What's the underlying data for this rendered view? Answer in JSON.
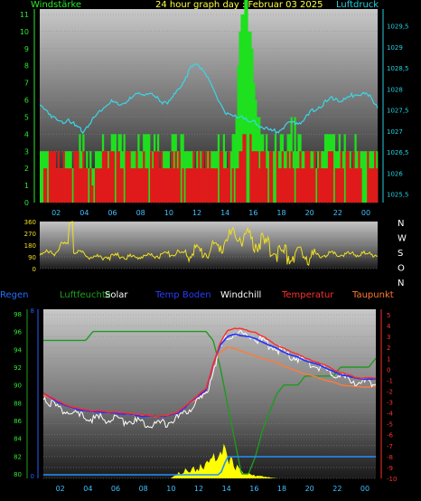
{
  "header": {
    "left_label": "Windstärke",
    "center_title": "24 hour graph day : Februar 03 2025",
    "right_label": "Luftdruck"
  },
  "colors": {
    "wind_axis": "#2ee82e",
    "pressure_axis": "#23d0e0",
    "wind_bar": "#1ee01e",
    "gust_bar": "#e01a1a",
    "pressure_line": "#39d7e6",
    "direction_line": "#f0e020",
    "humidity_line": "#1f9a1f",
    "temperature_line": "#ff2a2a",
    "dewpoint_line": "#ff7a3a",
    "soil_line": "#2030ff",
    "windchill_line": "#ffffff",
    "rain_line": "#2090ff",
    "solar_fill": "#ffff00"
  },
  "legend": [
    {
      "label": "Regen",
      "color": "#2070ff"
    },
    {
      "label": "Luftfeuchte",
      "color": "#1fa01f"
    },
    {
      "label": "Solar",
      "color": "#ffffff"
    },
    {
      "label": "Temp Boden",
      "color": "#2a3cff"
    },
    {
      "label": "Windchill",
      "color": "#ffffff"
    },
    {
      "label": "Temperatur",
      "color": "#ff3030"
    },
    {
      "label": "Taupunkt",
      "color": "#ff7a30"
    }
  ],
  "direction_labels": [
    "N",
    "W",
    "S",
    "O",
    "N"
  ],
  "chart_data": [
    {
      "type": "bar",
      "name": "wind-pressure",
      "x_ticks": [
        "02",
        "04",
        "06",
        "08",
        "10",
        "12",
        "14",
        "16",
        "18",
        "20",
        "22",
        "00"
      ],
      "y_left_ticks": [
        "0",
        "1",
        "2",
        "3",
        "4",
        "5",
        "6",
        "7",
        "8",
        "9",
        "10",
        "11"
      ],
      "y_left_range": [
        0,
        11
      ],
      "y_right_ticks": [
        "1025,5",
        "1026",
        "1026,5",
        "1027",
        "1027,5",
        "1028",
        "1028,5",
        "1029",
        "1029,5"
      ],
      "y_right_range": [
        1025.3,
        1029.9
      ],
      "wind_hourly": [
        3,
        3,
        2,
        2,
        3,
        3,
        3,
        2,
        3,
        3,
        4,
        4,
        3,
        3,
        3,
        4,
        3,
        3,
        3,
        4,
        3,
        3,
        3,
        3,
        3,
        4,
        3,
        3,
        11,
        11,
        6,
        4,
        3,
        3,
        3,
        4,
        4,
        3,
        3,
        3,
        4,
        4,
        3,
        3,
        3,
        3,
        3,
        3
      ],
      "gust_hourly": [
        3,
        3,
        3,
        3,
        3,
        3,
        3,
        2,
        3,
        3,
        3,
        3,
        3,
        3,
        3,
        3,
        3,
        3,
        3,
        3,
        3,
        3,
        3,
        3,
        3,
        3,
        3,
        3,
        3,
        6,
        3,
        3,
        3,
        3,
        3,
        3,
        3,
        3,
        3,
        3,
        3,
        3,
        3,
        3,
        3,
        3,
        3,
        3
      ],
      "pressure_hourly": [
        1027.6,
        1027.5,
        1027.3,
        1027.2,
        1027.3,
        1027.1,
        1027.0,
        1027.2,
        1027.4,
        1027.6,
        1027.7,
        1027.6,
        1027.7,
        1027.8,
        1027.9,
        1027.9,
        1027.8,
        1027.7,
        1027.7,
        1027.9,
        1028.2,
        1028.5,
        1028.6,
        1028.4,
        1028.0,
        1027.7,
        1027.4,
        1027.3,
        1027.4,
        1027.2,
        1027.2,
        1027.1,
        1027.0,
        1027.0,
        1027.1,
        1027.2,
        1027.2,
        1027.3,
        1027.5,
        1027.6,
        1027.7,
        1027.8,
        1027.7,
        1027.8,
        1027.9,
        1027.9,
        1027.8,
        1027.6
      ]
    },
    {
      "type": "line",
      "name": "wind-direction",
      "y_ticks": [
        "360",
        "270",
        "180",
        "90",
        "0"
      ],
      "y_range": [
        0,
        360
      ],
      "direction_hourly": [
        120,
        120,
        120,
        180,
        180,
        120,
        120,
        90,
        90,
        90,
        90,
        100,
        90,
        90,
        90,
        100,
        100,
        100,
        110,
        120,
        120,
        120,
        130,
        130,
        150,
        170,
        230,
        240,
        240,
        230,
        200,
        190,
        160,
        130,
        110,
        100,
        100,
        100,
        100,
        100,
        110,
        110,
        110,
        110,
        110,
        110,
        110,
        110
      ]
    },
    {
      "type": "line",
      "name": "temperature-humidity",
      "x_ticks": [
        "02",
        "04",
        "06",
        "08",
        "10",
        "12",
        "14",
        "16",
        "18",
        "20",
        "22",
        "00"
      ],
      "y_humidity_ticks": [
        "80",
        "82",
        "84",
        "86",
        "88",
        "90",
        "92",
        "94",
        "96",
        "98"
      ],
      "y_humidity_range": [
        79.5,
        98.5
      ],
      "y_temp_ticks": [
        "5",
        "4",
        "3",
        "2",
        "1",
        "0",
        "-1",
        "-2",
        "-3",
        "-4",
        "-5",
        "-6",
        "-7",
        "-8",
        "-9",
        "-10"
      ],
      "y_temp_range": [
        -10,
        5.5
      ],
      "temperature_hourly": [
        -2.2,
        -2.5,
        -2.9,
        -3.2,
        -3.4,
        -3.6,
        -3.7,
        -3.8,
        -3.8,
        -3.9,
        -3.9,
        -4.0,
        -4.0,
        -4.1,
        -4.2,
        -4.2,
        -4.3,
        -4.3,
        -4.1,
        -3.9,
        -3.4,
        -2.8,
        -2.3,
        -1.8,
        0.5,
        2.4,
        3.5,
        3.8,
        3.7,
        3.5,
        3.4,
        3.0,
        2.6,
        2.2,
        1.9,
        1.6,
        1.4,
        1.0,
        0.8,
        0.6,
        0.3,
        0.0,
        -0.3,
        -0.5,
        -0.7,
        -0.8,
        -0.8,
        -0.8
      ],
      "soil_hourly": [
        -2.2,
        -2.6,
        -3.0,
        -3.3,
        -3.5,
        -3.7,
        -3.8,
        -3.9,
        -3.9,
        -4.0,
        -4.0,
        -4.1,
        -4.1,
        -4.2,
        -4.3,
        -4.3,
        -4.3,
        -4.3,
        -4.2,
        -4.0,
        -3.5,
        -2.9,
        -2.4,
        -1.9,
        0.4,
        2.2,
        3.0,
        3.2,
        3.1,
        3.0,
        2.8,
        2.5,
        2.2,
        1.9,
        1.6,
        1.3,
        1.1,
        0.8,
        0.6,
        0.4,
        0.1,
        -0.2,
        -0.5,
        -0.6,
        -0.8,
        -0.9,
        -0.9,
        -0.9
      ],
      "dewpoint_hourly": [
        -2.4,
        -2.7,
        -3.0,
        -3.3,
        -3.5,
        -3.7,
        -3.8,
        -3.9,
        -3.9,
        -4.0,
        -4.0,
        -4.1,
        -4.1,
        -4.2,
        -4.2,
        -4.3,
        -4.3,
        -4.3,
        -4.2,
        -4.0,
        -3.5,
        -3.0,
        -2.6,
        -2.0,
        0.3,
        1.6,
        2.0,
        1.9,
        1.7,
        1.4,
        1.2,
        1.0,
        0.8,
        0.6,
        0.3,
        0.0,
        -0.2,
        -0.4,
        -0.6,
        -0.8,
        -1.0,
        -1.2,
        -1.4,
        -1.5,
        -1.6,
        -1.6,
        -1.6,
        -1.6
      ],
      "windchill_hourly": [
        -2.5,
        -3.0,
        -3.5,
        -3.8,
        -4.1,
        -4.3,
        -4.4,
        -4.5,
        -4.5,
        -4.6,
        -4.6,
        -4.7,
        -4.7,
        -4.8,
        -4.9,
        -4.9,
        -5.0,
        -5.0,
        -4.8,
        -4.5,
        -4.0,
        -3.4,
        -2.9,
        -2.4,
        0.0,
        1.9,
        3.0,
        3.3,
        3.2,
        3.1,
        2.9,
        2.6,
        2.2,
        1.8,
        1.5,
        1.2,
        1.0,
        0.6,
        0.4,
        0.2,
        -0.1,
        -0.4,
        -0.7,
        -0.9,
        -1.1,
        -1.2,
        -1.2,
        -1.2
      ],
      "humidity_hourly": [
        95,
        95,
        95,
        95,
        95,
        95,
        95,
        96,
        96,
        96,
        96,
        96,
        96,
        96,
        96,
        96,
        96,
        96,
        96,
        96,
        96,
        96,
        96,
        96,
        95,
        92,
        88,
        84,
        80,
        80,
        82,
        85,
        87,
        89,
        90,
        90,
        90,
        91,
        91,
        91,
        91,
        91,
        92,
        92,
        92,
        92,
        92,
        93
      ],
      "rain_hourly": [
        80,
        80,
        80,
        80,
        80,
        80,
        80,
        80,
        80,
        80,
        80,
        80,
        80,
        80,
        80,
        80,
        80,
        80,
        80,
        80,
        80,
        80,
        80,
        80,
        80,
        80,
        81,
        81,
        81,
        81,
        81,
        81,
        81,
        81,
        81,
        81,
        81,
        81,
        81,
        81,
        81,
        81,
        81,
        81,
        81,
        81,
        81,
        81
      ],
      "solar_hourly": [
        0,
        0,
        0,
        0,
        0,
        0,
        0,
        0,
        0,
        0,
        0,
        0,
        0,
        0,
        0,
        0,
        0,
        0,
        0,
        0.6,
        0.9,
        1.0,
        1.2,
        1.5,
        2.0,
        3.5,
        2.5,
        1.5,
        0.8,
        0.5,
        0.3,
        0.2,
        0.1,
        0,
        0,
        0,
        0,
        0,
        0,
        0,
        0,
        0,
        0,
        0,
        0,
        0,
        0,
        0
      ]
    }
  ]
}
